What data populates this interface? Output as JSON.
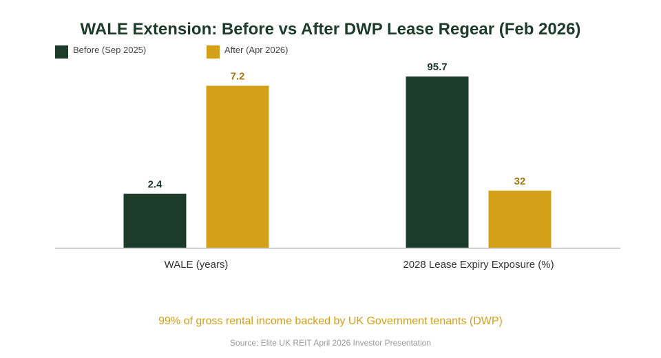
{
  "chart_data": {
    "type": "bar",
    "title": "WALE Extension: Before vs After DWP Lease Regear (Feb 2026)",
    "categories": [
      "WALE (years)",
      "2028 Lease Expiry Exposure (%)"
    ],
    "series": [
      {
        "name": "Before (Sep 2025)",
        "values": [
          2.4,
          95.7
        ],
        "labels": [
          "2.4",
          "95.7"
        ],
        "color": "#1c3b2b"
      },
      {
        "name": "After (Apr 2026)",
        "values": [
          7.2,
          32
        ],
        "labels": [
          "7.2",
          "32"
        ],
        "color": "#d4a017"
      }
    ],
    "value_label_colors": [
      "#1c3b2b",
      "#a07812"
    ],
    "legend_position": "top-left",
    "grid": false,
    "independent_scales": true,
    "note": "99% of gross rental income backed by UK Government tenants (DWP)",
    "source": "Source: Elite UK REIT April 2026 Investor Presentation"
  },
  "colors": {
    "title": "#1c3b2b",
    "note": "#d4a017",
    "axis": "#bbbbbb"
  }
}
